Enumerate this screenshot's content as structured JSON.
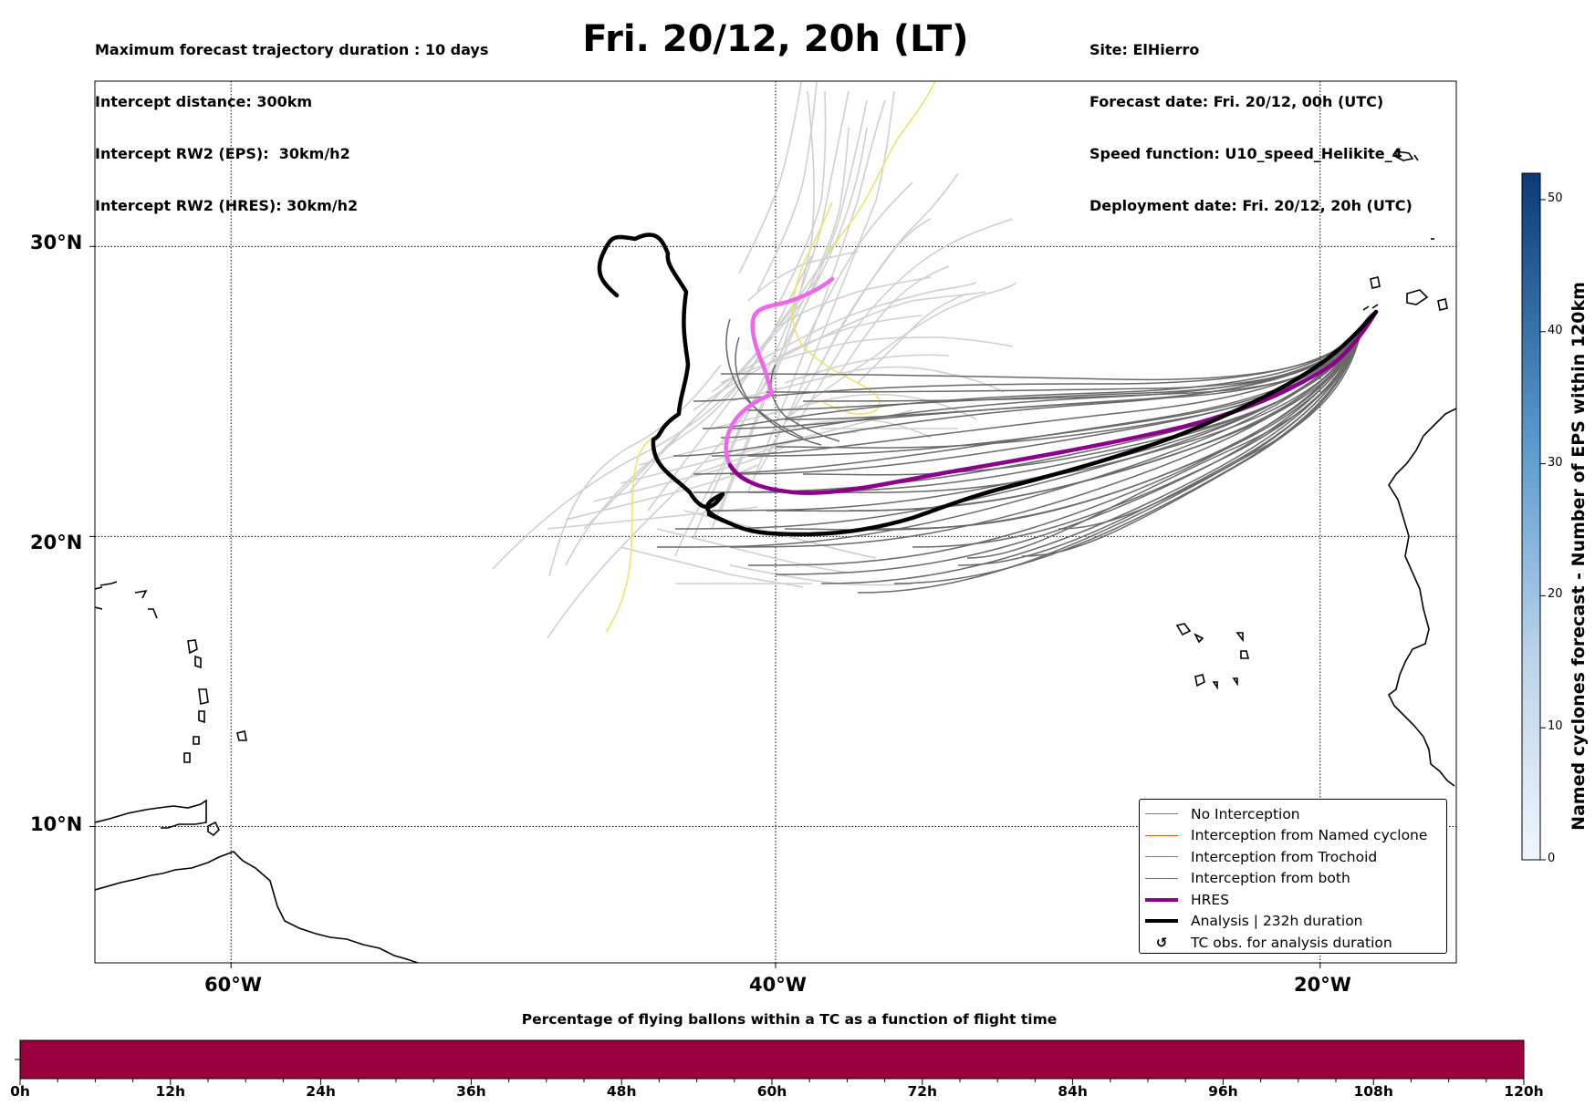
{
  "header": {
    "left_lines": [
      "Maximum forecast trajectory duration : 10 days",
      "Intercept distance: 300km",
      "Intercept RW2 (EPS):  30km/h2",
      "Intercept RW2 (HRES): 30km/h2"
    ],
    "right_lines": [
      "Site: ElHierro",
      "Forecast date: Fri. 20/12, 00h (UTC)",
      "Speed function: U10_speed_Helikite_4",
      "Deployment date: Fri. 20/12, 20h (UTC)"
    ],
    "title": "Fri. 20/12, 20h (LT)"
  },
  "map": {
    "lat_labels": [
      "30°N",
      "20°N",
      "10°N"
    ],
    "lon_labels": [
      "60°W",
      "40°W",
      "20°W"
    ],
    "extent": {
      "lon_min": -65,
      "lon_max": -15,
      "lat_min": 5.3,
      "lat_max": 35.7
    },
    "gridlines": {
      "lons": [
        -60,
        -40,
        -20
      ],
      "lats": [
        10,
        20,
        30
      ]
    },
    "colors": {
      "eps_no_interception": "#696969",
      "eps_light": "#cfcfcf",
      "eps_yellow": "#eee46a",
      "hres": "#8b008b",
      "hres_light": "#ee66ee",
      "analysis": "#000000"
    }
  },
  "legend": {
    "items": [
      {
        "label": "No Interception",
        "color": "#808080",
        "width": 1.5
      },
      {
        "label": "Interception from Named cyclone",
        "color": "#ee5a24",
        "width": 1.5
      },
      {
        "label": "Interception from Trochoid",
        "color": "#8b8b00",
        "width": 1.5
      },
      {
        "label": "Interception from both",
        "color": "#2ca02c",
        "width": 1.5
      },
      {
        "label": "HRES",
        "color": "#8b008b",
        "width": 4
      },
      {
        "label": "Analysis | 232h duration",
        "color": "#000000",
        "width": 4
      }
    ],
    "tc_obs_label": "TC obs. for analysis duration",
    "tc_obs_icon": "tc-obs-icon"
  },
  "colorbar": {
    "title": "Named cyclones forecast - Number of EPS within 120km",
    "ticks": [
      "0",
      "10",
      "20",
      "30",
      "40",
      "50"
    ],
    "tick_values": [
      0,
      10,
      20,
      30,
      40,
      50
    ],
    "vmax": 52
  },
  "bottom_bar": {
    "title": "Percentage of flying ballons within a TC as a function of flight time",
    "ticks": [
      "0h",
      "12h",
      "24h",
      "36h",
      "48h",
      "60h",
      "72h",
      "84h",
      "96h",
      "108h",
      "120h"
    ],
    "color": "#99003d"
  }
}
